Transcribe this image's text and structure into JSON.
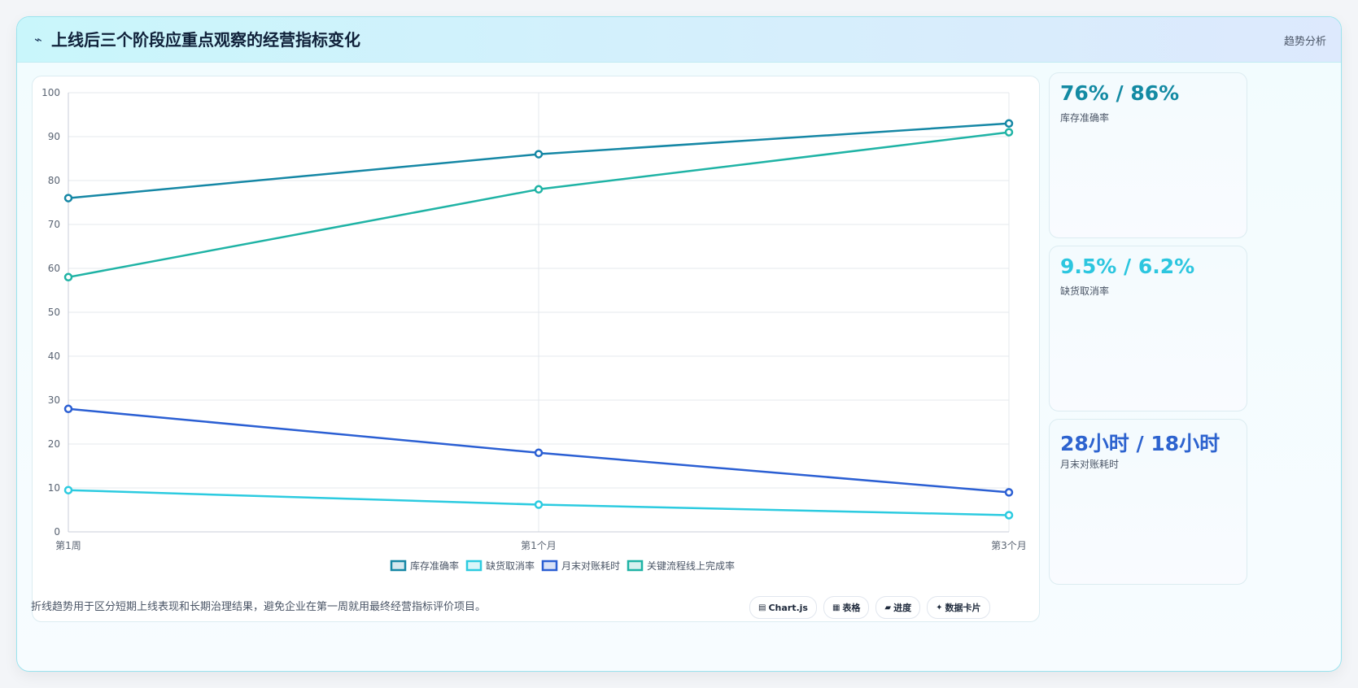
{
  "header": {
    "icon": "lightning-icon",
    "title": "上线后三个阶段应重点观察的经营指标变化",
    "tag": "趋势分析"
  },
  "chart_data": {
    "type": "line",
    "categories": [
      "第1周",
      "第1个月",
      "第3个月"
    ],
    "ylim": [
      0,
      100
    ],
    "yticks": [
      0,
      10,
      20,
      30,
      40,
      50,
      60,
      70,
      80,
      90,
      100
    ],
    "grid": true,
    "legend": "bottom",
    "series": [
      {
        "name": "库存准确率",
        "values": [
          76,
          86,
          93
        ],
        "color": "#1587a5"
      },
      {
        "name": "缺货取消率",
        "values": [
          9.5,
          6.2,
          3.8
        ],
        "color": "#2ccbe0"
      },
      {
        "name": "月末对账耗时",
        "values": [
          28,
          18,
          9
        ],
        "color": "#2b5fd3"
      },
      {
        "name": "关键流程线上完成率",
        "values": [
          58,
          78,
          91
        ],
        "color": "#1fb3a5"
      }
    ]
  },
  "stats": [
    {
      "value": "76% / 86%",
      "label": "库存准确率",
      "color": "#138aa3"
    },
    {
      "value": "9.5% / 6.2%",
      "label": "缺货取消率",
      "color": "#2cc6df"
    },
    {
      "value": "28小时 / 18小时",
      "label": "月末对账耗时",
      "color": "#2d63cf"
    }
  ],
  "footnote": "折线趋势用于区分短期上线表现和长期治理结果，避免企业在第一周就用最终经营指标评价项目。",
  "tools": [
    {
      "icon": "chart-icon",
      "glyph": "▤",
      "label": "Chart.js"
    },
    {
      "icon": "table-icon",
      "glyph": "▦",
      "label": "表格"
    },
    {
      "icon": "progress-icon",
      "glyph": "▰",
      "label": "进度"
    },
    {
      "icon": "sparkle-icon",
      "glyph": "✦",
      "label": "数据卡片"
    }
  ]
}
